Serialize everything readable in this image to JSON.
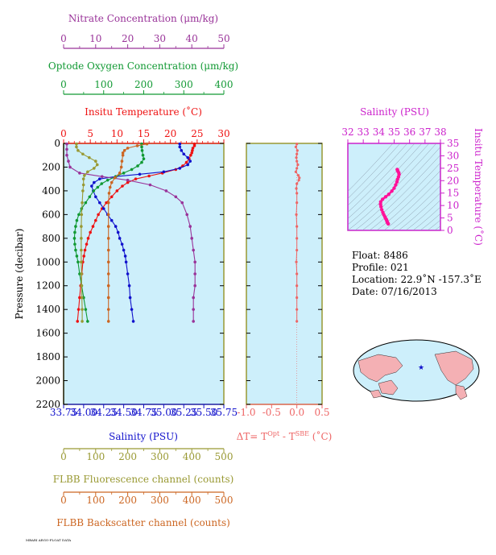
{
  "axes": {
    "nitrate": {
      "label": "Nitrate Concentration (μm/kg)",
      "ticks": [
        "0",
        "10",
        "20",
        "30",
        "40",
        "50"
      ],
      "color": "#993399"
    },
    "oxygen": {
      "label": "Optode Oxygen Concentration (μm/kg)",
      "ticks": [
        "0",
        "100",
        "200",
        "300",
        "400"
      ],
      "color": "#119933"
    },
    "temperature": {
      "label": "Insitu Temperature (˚C)",
      "ticks": [
        "0",
        "5",
        "10",
        "15",
        "20",
        "25",
        "30"
      ],
      "color": "#ee1111"
    },
    "pressure": {
      "label": "Pressure (decibar)",
      "ticks": [
        "0",
        "200",
        "400",
        "600",
        "800",
        "1000",
        "1200",
        "1400",
        "1600",
        "1800",
        "2000",
        "2200"
      ],
      "color": "#000000"
    },
    "salinity": {
      "label": "Salinity (PSU)",
      "ticks": [
        "33.75",
        "34.00",
        "34.25",
        "34.50",
        "34.75",
        "35.00",
        "35.25",
        "35.50",
        "35.75"
      ],
      "color": "#1111cc"
    },
    "fluorescence": {
      "label": "FLBB Fluorescence channel (counts)",
      "ticks": [
        "0",
        "100",
        "200",
        "300",
        "400",
        "500"
      ],
      "color": "#999933"
    },
    "backscatter": {
      "label": "FLBB Backscatter channel (counts)",
      "ticks": [
        "0",
        "100",
        "200",
        "300",
        "400",
        "500"
      ],
      "color": "#cc6622"
    },
    "dt": {
      "label_main": "ΔT= T",
      "sup1": "Opt",
      "label_mid": " - T",
      "sup2": "SBE",
      "label_end": " (˚C)",
      "ticks": [
        "-1.0",
        "-0.5",
        "0.0",
        "0.5"
      ],
      "color": "#ee6666"
    },
    "ts_salinity": {
      "label": "Salinity (PSU)",
      "ticks": [
        "32",
        "33",
        "34",
        "35",
        "36",
        "37",
        "38"
      ],
      "color": "#cc22cc"
    },
    "ts_temperature": {
      "label": "Insitu Temperature (˚C)",
      "ticks": [
        "0",
        "5",
        "10",
        "15",
        "20",
        "25",
        "30",
        "35"
      ],
      "color": "#cc22cc"
    }
  },
  "info": {
    "float": "Float:  8486",
    "profile": "Profile:  021",
    "location": "Location:  22.9˚N  -157.3˚E",
    "date": "Date:  07/16/2013"
  },
  "footer_text": "MBARI ARGO-FLOAT DATA",
  "chart_data": [
    {
      "type": "line",
      "title": "",
      "ylabel": "Pressure (decibar)",
      "ylim": [
        0,
        2200
      ],
      "y_inverted": true,
      "series": [
        {
          "name": "Insitu Temperature (˚C)",
          "color": "#ee1111",
          "xlim": [
            0,
            30
          ],
          "points": [
            [
              24.5,
              5
            ],
            [
              24.5,
              20
            ],
            [
              24.2,
              40
            ],
            [
              24.1,
              60
            ],
            [
              24.0,
              80
            ],
            [
              23.8,
              100
            ],
            [
              23.5,
              130
            ],
            [
              23.0,
              160
            ],
            [
              22.3,
              190
            ],
            [
              21.0,
              220
            ],
            [
              18.5,
              250
            ],
            [
              16.0,
              275
            ],
            [
              13.5,
              300
            ],
            [
              12.0,
              330
            ],
            [
              11.0,
              360
            ],
            [
              10.0,
              400
            ],
            [
              9.0,
              450
            ],
            [
              8.0,
              500
            ],
            [
              7.2,
              550
            ],
            [
              6.5,
              600
            ],
            [
              6.0,
              650
            ],
            [
              5.5,
              700
            ],
            [
              5.0,
              750
            ],
            [
              4.6,
              800
            ],
            [
              4.3,
              850
            ],
            [
              4.0,
              900
            ],
            [
              3.8,
              950
            ],
            [
              3.6,
              1000
            ],
            [
              3.4,
              1100
            ],
            [
              3.2,
              1200
            ],
            [
              3.0,
              1300
            ],
            [
              2.8,
              1400
            ],
            [
              2.6,
              1500
            ]
          ]
        },
        {
          "name": "Salinity (PSU)",
          "color": "#1111cc",
          "xlim": [
            33.75,
            35.75
          ],
          "points": [
            [
              35.2,
              5
            ],
            [
              35.2,
              30
            ],
            [
              35.22,
              60
            ],
            [
              35.25,
              90
            ],
            [
              35.3,
              120
            ],
            [
              35.33,
              150
            ],
            [
              35.3,
              180
            ],
            [
              35.2,
              210
            ],
            [
              35.0,
              240
            ],
            [
              34.7,
              260
            ],
            [
              34.4,
              280
            ],
            [
              34.2,
              300
            ],
            [
              34.13,
              330
            ],
            [
              34.1,
              360
            ],
            [
              34.12,
              400
            ],
            [
              34.15,
              450
            ],
            [
              34.2,
              500
            ],
            [
              34.25,
              550
            ],
            [
              34.3,
              600
            ],
            [
              34.35,
              650
            ],
            [
              34.4,
              700
            ],
            [
              34.43,
              750
            ],
            [
              34.45,
              800
            ],
            [
              34.48,
              850
            ],
            [
              34.5,
              900
            ],
            [
              34.52,
              950
            ],
            [
              34.53,
              1000
            ],
            [
              34.55,
              1100
            ],
            [
              34.57,
              1200
            ],
            [
              34.58,
              1300
            ],
            [
              34.6,
              1400
            ],
            [
              34.62,
              1500
            ]
          ]
        },
        {
          "name": "Nitrate Concentration (μm/kg)",
          "color": "#993399",
          "xlim": [
            0,
            50
          ],
          "points": [
            [
              1,
              5
            ],
            [
              1,
              50
            ],
            [
              1,
              100
            ],
            [
              1.5,
              150
            ],
            [
              2,
              200
            ],
            [
              5,
              250
            ],
            [
              12,
              280
            ],
            [
              20,
              310
            ],
            [
              27,
              350
            ],
            [
              32,
              400
            ],
            [
              35,
              450
            ],
            [
              37,
              500
            ],
            [
              38.5,
              600
            ],
            [
              39.5,
              700
            ],
            [
              40,
              800
            ],
            [
              40.5,
              900
            ],
            [
              41,
              1000
            ],
            [
              41,
              1100
            ],
            [
              41,
              1200
            ],
            [
              40.5,
              1300
            ],
            [
              40.5,
              1400
            ],
            [
              40.5,
              1500
            ]
          ]
        },
        {
          "name": "Optode Oxygen Concentration (μm/kg)",
          "color": "#119933",
          "xlim": [
            0,
            400
          ],
          "points": [
            [
              195,
              5
            ],
            [
              195,
              30
            ],
            [
              196,
              60
            ],
            [
              198,
              100
            ],
            [
              200,
              130
            ],
            [
              195,
              160
            ],
            [
              185,
              190
            ],
            [
              170,
              220
            ],
            [
              150,
              250
            ],
            [
              130,
              280
            ],
            [
              110,
              310
            ],
            [
              95,
              340
            ],
            [
              85,
              370
            ],
            [
              75,
              400
            ],
            [
              65,
              450
            ],
            [
              55,
              500
            ],
            [
              45,
              550
            ],
            [
              38,
              600
            ],
            [
              33,
              650
            ],
            [
              30,
              700
            ],
            [
              28,
              750
            ],
            [
              27,
              800
            ],
            [
              28,
              850
            ],
            [
              30,
              900
            ],
            [
              33,
              950
            ],
            [
              36,
              1000
            ],
            [
              40,
              1100
            ],
            [
              45,
              1200
            ],
            [
              50,
              1300
            ],
            [
              55,
              1400
            ],
            [
              60,
              1500
            ]
          ]
        },
        {
          "name": "FLBB Fluorescence channel (counts)",
          "color": "#999933",
          "xlim": [
            0,
            500
          ],
          "points": [
            [
              40,
              5
            ],
            [
              40,
              30
            ],
            [
              45,
              60
            ],
            [
              60,
              90
            ],
            [
              80,
              120
            ],
            [
              100,
              150
            ],
            [
              105,
              180
            ],
            [
              95,
              210
            ],
            [
              75,
              240
            ],
            [
              65,
              270
            ],
            [
              62,
              300
            ],
            [
              62,
              350
            ],
            [
              60,
              400
            ],
            [
              58,
              500
            ],
            [
              56,
              600
            ],
            [
              55,
              700
            ],
            [
              55,
              800
            ],
            [
              55,
              900
            ],
            [
              55,
              1000
            ],
            [
              56,
              1100
            ],
            [
              56,
              1200
            ],
            [
              57,
              1300
            ],
            [
              58,
              1400
            ],
            [
              58,
              1500
            ]
          ]
        },
        {
          "name": "FLBB Backscatter channel (counts)",
          "color": "#cc6622",
          "xlim": [
            0,
            500
          ],
          "points": [
            [
              260,
              5
            ],
            [
              230,
              20
            ],
            [
              200,
              40
            ],
            [
              190,
              60
            ],
            [
              185,
              80
            ],
            [
              185,
              100
            ],
            [
              182,
              150
            ],
            [
              180,
              200
            ],
            [
              175,
              250
            ],
            [
              160,
              290
            ],
            [
              150,
              330
            ],
            [
              145,
              370
            ],
            [
              142,
              420
            ],
            [
              140,
              500
            ],
            [
              140,
              600
            ],
            [
              140,
              700
            ],
            [
              140,
              800
            ],
            [
              140,
              900
            ],
            [
              140,
              1000
            ],
            [
              140,
              1100
            ],
            [
              140,
              1200
            ],
            [
              140,
              1300
            ],
            [
              140,
              1400
            ],
            [
              140,
              1500
            ]
          ]
        }
      ]
    },
    {
      "type": "line",
      "title": "",
      "ylabel": "",
      "xlabel": "ΔT= T Opt - T SBE (˚C)",
      "xlim": [
        -1.0,
        0.5
      ],
      "ylim": [
        0,
        2200
      ],
      "y_inverted": true,
      "series": [
        {
          "name": "",
          "color": "#ee6666",
          "points": [
            [
              0.0,
              5
            ],
            [
              -0.02,
              30
            ],
            [
              0.01,
              60
            ],
            [
              0.0,
              90
            ],
            [
              -0.01,
              120
            ],
            [
              0.0,
              150
            ],
            [
              0.02,
              180
            ],
            [
              0.0,
              210
            ],
            [
              -0.02,
              240
            ],
            [
              0.03,
              270
            ],
            [
              0.05,
              290
            ],
            [
              0.04,
              310
            ],
            [
              0.0,
              340
            ],
            [
              -0.01,
              380
            ],
            [
              0.0,
              420
            ],
            [
              0.0,
              500
            ],
            [
              -0.01,
              600
            ],
            [
              0.0,
              700
            ],
            [
              0.0,
              800
            ],
            [
              0.0,
              900
            ],
            [
              -0.01,
              1000
            ],
            [
              0.0,
              1100
            ],
            [
              0.0,
              1200
            ],
            [
              0.0,
              1300
            ],
            [
              0.0,
              1400
            ],
            [
              0.0,
              1500
            ]
          ]
        }
      ]
    },
    {
      "type": "scatter",
      "title": "",
      "xlabel": "Salinity (PSU)",
      "ylabel": "Insitu Temperature (˚C)",
      "xlim": [
        32,
        38
      ],
      "ylim": [
        0,
        35
      ],
      "series": [
        {
          "name": "",
          "color": "#ff1199",
          "points": [
            [
              34.62,
              2.6
            ],
            [
              34.58,
              3.0
            ],
            [
              34.55,
              3.4
            ],
            [
              34.53,
              3.8
            ],
            [
              34.5,
              4.3
            ],
            [
              34.45,
              4.8
            ],
            [
              34.4,
              5.5
            ],
            [
              34.33,
              6.3
            ],
            [
              34.27,
              7.2
            ],
            [
              34.2,
              8.3
            ],
            [
              34.15,
              9.5
            ],
            [
              34.12,
              10.5
            ],
            [
              34.13,
              11.5
            ],
            [
              34.25,
              12.5
            ],
            [
              34.45,
              13.5
            ],
            [
              34.65,
              14.5
            ],
            [
              34.85,
              15.8
            ],
            [
              35.0,
              17.0
            ],
            [
              35.1,
              18.3
            ],
            [
              35.18,
              19.5
            ],
            [
              35.22,
              20.5
            ],
            [
              35.28,
              21.5
            ],
            [
              35.32,
              22.5
            ],
            [
              35.3,
              23.2
            ],
            [
              35.24,
              23.8
            ],
            [
              35.22,
              24.2
            ],
            [
              35.2,
              24.5
            ]
          ]
        }
      ]
    }
  ]
}
